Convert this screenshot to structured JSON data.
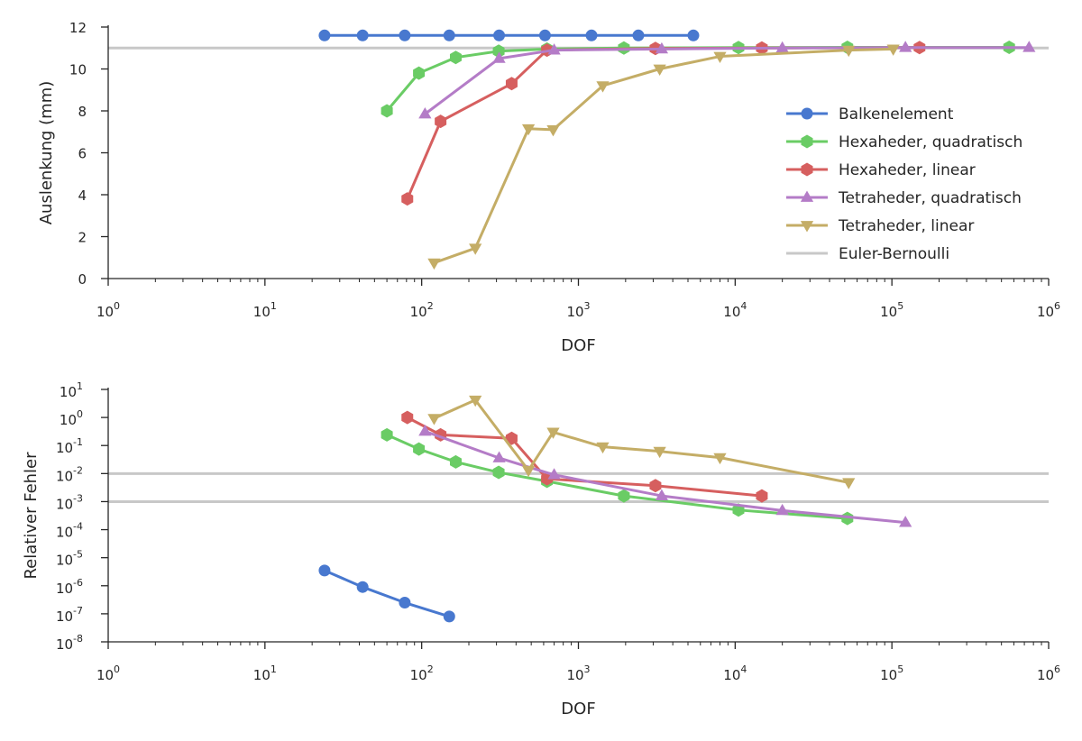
{
  "chart_data": [
    {
      "type": "line",
      "xlabel": "DOF",
      "ylabel": "Auslenkung (mm)",
      "xscale": "log",
      "xlim": [
        1,
        1000000
      ],
      "ylim": [
        0,
        12
      ],
      "xticks": [
        1,
        10,
        100,
        1000,
        10000,
        100000,
        1000000
      ],
      "xtick_labels": [
        {
          "base": "10",
          "exp": "0"
        },
        {
          "base": "10",
          "exp": "1"
        },
        {
          "base": "10",
          "exp": "2"
        },
        {
          "base": "10",
          "exp": "3"
        },
        {
          "base": "10",
          "exp": "4"
        },
        {
          "base": "10",
          "exp": "5"
        },
        {
          "base": "10",
          "exp": "6"
        }
      ],
      "yticks": [
        0,
        2,
        4,
        6,
        8,
        10,
        12
      ],
      "ytick_labels": [
        "0",
        "2",
        "4",
        "6",
        "8",
        "10",
        "12"
      ],
      "grid": false,
      "legend_position": "center-right",
      "hlines": [
        {
          "name": "Euler-Bernoulli",
          "y": 11.0,
          "color": "#c8c8c8"
        }
      ],
      "series": [
        {
          "name": "Balkenelement",
          "color": "#4878cf",
          "marker": "circle",
          "x": [
            24,
            42,
            78,
            150,
            312,
            612,
            1212,
            2412,
            5412
          ],
          "y": [
            11.6,
            11.6,
            11.6,
            11.6,
            11.6,
            11.6,
            11.6,
            11.6,
            11.6
          ]
        },
        {
          "name": "Hexaheder, quadratisch",
          "color": "#6acc65",
          "marker": "hexagon",
          "x": [
            60,
            96,
            165,
            310,
            630,
            1950,
            10500,
            52000,
            560000
          ],
          "y": [
            8.0,
            9.8,
            10.55,
            10.85,
            10.95,
            11.0,
            11.02,
            11.03,
            11.03
          ]
        },
        {
          "name": "Hexaheder, linear",
          "color": "#d65f5f",
          "marker": "hexagon",
          "x": [
            81,
            132,
            375,
            630,
            3100,
            14800,
            150000
          ],
          "y": [
            3.8,
            7.5,
            9.3,
            10.9,
            10.98,
            11.0,
            11.02
          ]
        },
        {
          "name": "Tetraheder, quadratisch",
          "color": "#b47cc7",
          "marker": "triangle-up",
          "x": [
            105,
            312,
            700,
            3400,
            20000,
            122000,
            750000
          ],
          "y": [
            7.85,
            10.5,
            10.9,
            10.95,
            11.0,
            11.02,
            11.02
          ]
        },
        {
          "name": "Tetraheder, linear",
          "color": "#c4ad66",
          "marker": "triangle-down",
          "x": [
            120,
            220,
            480,
            690,
            1430,
            3300,
            8000,
            53000,
            102000
          ],
          "y": [
            0.75,
            1.45,
            7.15,
            7.1,
            9.2,
            10.0,
            10.6,
            10.9,
            10.95
          ]
        }
      ]
    },
    {
      "type": "line",
      "xlabel": "DOF",
      "ylabel": "Relativer Fehler",
      "xscale": "log",
      "yscale": "log",
      "xlim": [
        1,
        1000000
      ],
      "ylim": [
        1e-08,
        10
      ],
      "xticks": [
        1,
        10,
        100,
        1000,
        10000,
        100000,
        1000000
      ],
      "xtick_labels": [
        {
          "base": "10",
          "exp": "0"
        },
        {
          "base": "10",
          "exp": "1"
        },
        {
          "base": "10",
          "exp": "2"
        },
        {
          "base": "10",
          "exp": "3"
        },
        {
          "base": "10",
          "exp": "4"
        },
        {
          "base": "10",
          "exp": "5"
        },
        {
          "base": "10",
          "exp": "6"
        }
      ],
      "yticks": [
        1e-08,
        1e-07,
        1e-06,
        1e-05,
        0.0001,
        0.001,
        0.01,
        0.1,
        1,
        10
      ],
      "ytick_labels": [
        {
          "base": "10",
          "exp": "-8"
        },
        {
          "base": "10",
          "exp": "-7"
        },
        {
          "base": "10",
          "exp": "-6"
        },
        {
          "base": "10",
          "exp": "-5"
        },
        {
          "base": "10",
          "exp": "-4"
        },
        {
          "base": "10",
          "exp": "-3"
        },
        {
          "base": "10",
          "exp": "-2"
        },
        {
          "base": "10",
          "exp": "-1"
        },
        {
          "base": "10",
          "exp": "0"
        },
        {
          "base": "10",
          "exp": "1"
        }
      ],
      "grid": false,
      "hlines": [
        {
          "y": 0.01,
          "color": "#c8c8c8"
        },
        {
          "y": 0.001,
          "color": "#c8c8c8"
        }
      ],
      "series": [
        {
          "name": "Balkenelement",
          "color": "#4878cf",
          "marker": "circle",
          "x": [
            24,
            42,
            78,
            150
          ],
          "y": [
            3.5e-06,
            9e-07,
            2.5e-07,
            8e-08
          ]
        },
        {
          "name": "Hexaheder, quadratisch",
          "color": "#6acc65",
          "marker": "hexagon",
          "x": [
            60,
            96,
            165,
            310,
            630,
            1950,
            10500,
            52000
          ],
          "y": [
            0.24,
            0.075,
            0.026,
            0.011,
            0.0053,
            0.0016,
            0.0005,
            0.00025
          ]
        },
        {
          "name": "Hexaheder, linear",
          "color": "#d65f5f",
          "marker": "hexagon",
          "x": [
            81,
            132,
            375,
            630,
            3100,
            14800
          ],
          "y": [
            1.0,
            0.24,
            0.18,
            0.0065,
            0.0037,
            0.0016
          ]
        },
        {
          "name": "Tetraheder, quadratisch",
          "color": "#b47cc7",
          "marker": "triangle-up",
          "x": [
            105,
            312,
            700,
            3400,
            20000,
            122000
          ],
          "y": [
            0.32,
            0.036,
            0.009,
            0.0016,
            0.00048,
            0.00018
          ]
        },
        {
          "name": "Tetraheder, linear",
          "color": "#c4ad66",
          "marker": "triangle-down",
          "x": [
            120,
            220,
            480,
            690,
            1430,
            3300,
            8000,
            53000
          ],
          "y": [
            0.93,
            4.2,
            0.013,
            0.3,
            0.09,
            0.062,
            0.037,
            0.0048
          ]
        }
      ]
    }
  ]
}
